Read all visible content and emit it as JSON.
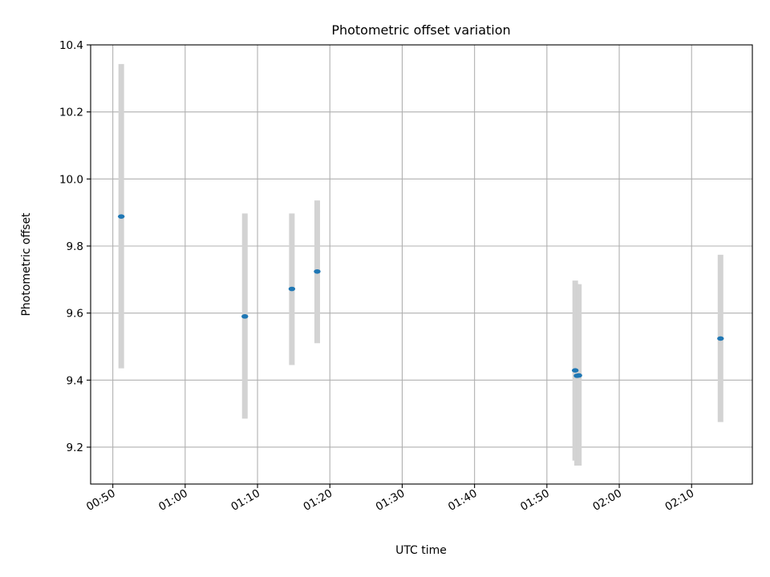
{
  "chart_data": {
    "type": "scatter",
    "title": "Photometric offset variation",
    "xlabel": "UTC time",
    "ylabel": "Photometric offset",
    "x_tick_labels": [
      "00:50",
      "01:00",
      "01:10",
      "01:20",
      "01:30",
      "01:40",
      "01:50",
      "02:00",
      "02:10"
    ],
    "y_tick_labels": [
      "9.2",
      "9.4",
      "9.6",
      "9.8",
      "10.0",
      "10.2",
      "10.4"
    ],
    "xlim": [
      "00:46:56",
      "02:18:24"
    ],
    "ylim": [
      9.09,
      10.4
    ],
    "grid": true,
    "marker_color": "#1f77b4",
    "errorbar_color": "#d3d3d3",
    "points": [
      {
        "time": "00:51:10",
        "value": 9.888,
        "lower": 9.435,
        "upper": 10.343
      },
      {
        "time": "01:08:15",
        "value": 9.59,
        "lower": 9.285,
        "upper": 9.897
      },
      {
        "time": "01:14:45",
        "value": 9.672,
        "lower": 9.445,
        "upper": 9.897
      },
      {
        "time": "01:18:15",
        "value": 9.724,
        "lower": 9.51,
        "upper": 9.936
      },
      {
        "time": "01:53:55",
        "value": 9.429,
        "lower": 9.16,
        "upper": 9.697
      },
      {
        "time": "01:54:10",
        "value": 9.413,
        "lower": 9.145,
        "upper": 9.686
      },
      {
        "time": "01:54:25",
        "value": 9.414,
        "lower": 9.145,
        "upper": 9.686
      },
      {
        "time": "02:14:00",
        "value": 9.524,
        "lower": 9.275,
        "upper": 9.774
      }
    ]
  }
}
